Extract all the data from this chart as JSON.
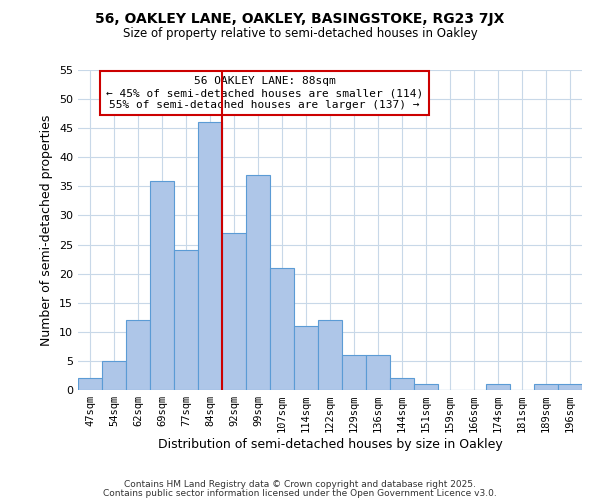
{
  "title1": "56, OAKLEY LANE, OAKLEY, BASINGSTOKE, RG23 7JX",
  "title2": "Size of property relative to semi-detached houses in Oakley",
  "xlabel": "Distribution of semi-detached houses by size in Oakley",
  "ylabel": "Number of semi-detached properties",
  "bin_labels": [
    "47sqm",
    "54sqm",
    "62sqm",
    "69sqm",
    "77sqm",
    "84sqm",
    "92sqm",
    "99sqm",
    "107sqm",
    "114sqm",
    "122sqm",
    "129sqm",
    "136sqm",
    "144sqm",
    "151sqm",
    "159sqm",
    "166sqm",
    "174sqm",
    "181sqm",
    "189sqm",
    "196sqm"
  ],
  "bar_values": [
    2,
    5,
    12,
    36,
    24,
    46,
    27,
    37,
    21,
    11,
    12,
    6,
    6,
    2,
    1,
    0,
    0,
    1,
    0,
    1,
    1
  ],
  "bar_color": "#aec6e8",
  "bar_edge_color": "#5b9bd5",
  "vline_x": 5.5,
  "vline_color": "#cc0000",
  "ylim": [
    0,
    55
  ],
  "yticks": [
    0,
    5,
    10,
    15,
    20,
    25,
    30,
    35,
    40,
    45,
    50,
    55
  ],
  "annotation_title": "56 OAKLEY LANE: 88sqm",
  "annotation_line1": "← 45% of semi-detached houses are smaller (114)",
  "annotation_line2": "55% of semi-detached houses are larger (137) →",
  "annotation_box_color": "#ffffff",
  "annotation_box_edge": "#cc0000",
  "footer1": "Contains HM Land Registry data © Crown copyright and database right 2025.",
  "footer2": "Contains public sector information licensed under the Open Government Licence v3.0.",
  "background_color": "#ffffff",
  "grid_color": "#c8d8e8"
}
